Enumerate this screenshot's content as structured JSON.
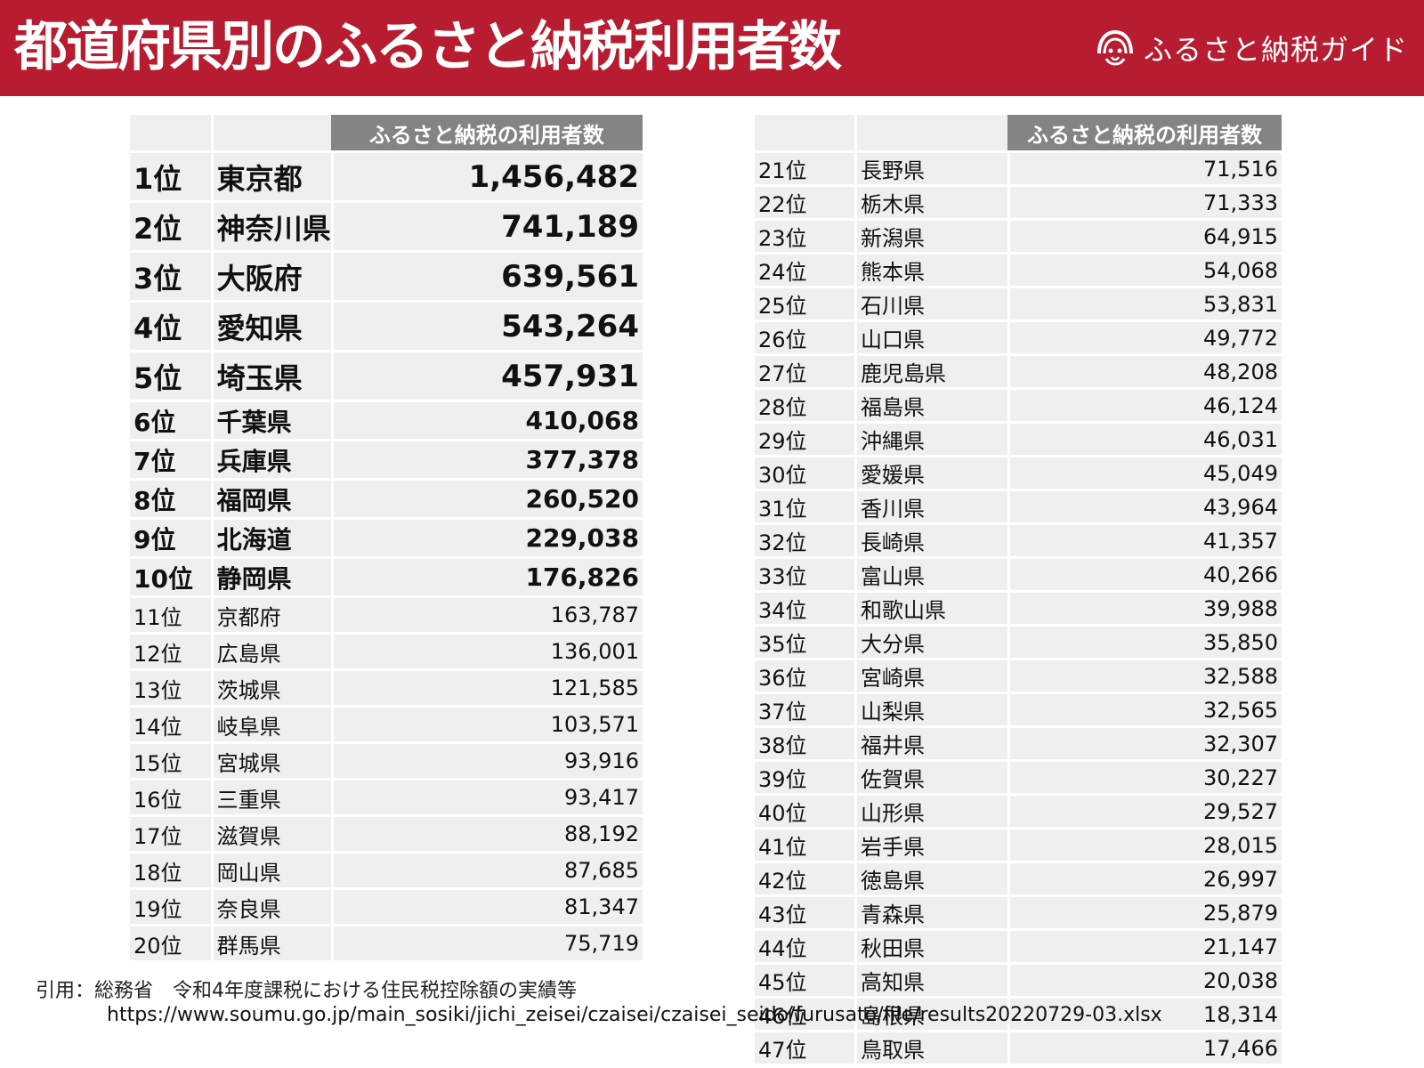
{
  "header": {
    "title": "都道府県別のふるさと納税利用者数",
    "brand": "ふるさと納税ガイド",
    "brand_icon": "furusato-logo-icon",
    "color": "#b71c30"
  },
  "table_left": {
    "column_header": "ふるさと納税の利用者数",
    "rows": [
      {
        "rank": "1位",
        "pref": "東京都",
        "value": "1,456,482"
      },
      {
        "rank": "2位",
        "pref": "神奈川県",
        "value": "741,189"
      },
      {
        "rank": "3位",
        "pref": "大阪府",
        "value": "639,561"
      },
      {
        "rank": "4位",
        "pref": "愛知県",
        "value": "543,264"
      },
      {
        "rank": "5位",
        "pref": "埼玉県",
        "value": "457,931"
      },
      {
        "rank": "6位",
        "pref": "千葉県",
        "value": "410,068"
      },
      {
        "rank": "7位",
        "pref": "兵庫県",
        "value": "377,378"
      },
      {
        "rank": "8位",
        "pref": "福岡県",
        "value": "260,520"
      },
      {
        "rank": "9位",
        "pref": "北海道",
        "value": "229,038"
      },
      {
        "rank": "10位",
        "pref": "静岡県",
        "value": "176,826"
      },
      {
        "rank": "11位",
        "pref": "京都府",
        "value": "163,787"
      },
      {
        "rank": "12位",
        "pref": "広島県",
        "value": "136,001"
      },
      {
        "rank": "13位",
        "pref": "茨城県",
        "value": "121,585"
      },
      {
        "rank": "14位",
        "pref": "岐阜県",
        "value": "103,571"
      },
      {
        "rank": "15位",
        "pref": "宮城県",
        "value": "93,916"
      },
      {
        "rank": "16位",
        "pref": "三重県",
        "value": "93,417"
      },
      {
        "rank": "17位",
        "pref": "滋賀県",
        "value": "88,192"
      },
      {
        "rank": "18位",
        "pref": "岡山県",
        "value": "87,685"
      },
      {
        "rank": "19位",
        "pref": "奈良県",
        "value": "81,347"
      },
      {
        "rank": "20位",
        "pref": "群馬県",
        "value": "75,719"
      }
    ]
  },
  "table_right": {
    "column_header": "ふるさと納税の利用者数",
    "rows": [
      {
        "rank": "21位",
        "pref": "長野県",
        "value": "71,516"
      },
      {
        "rank": "22位",
        "pref": "栃木県",
        "value": "71,333"
      },
      {
        "rank": "23位",
        "pref": "新潟県",
        "value": "64,915"
      },
      {
        "rank": "24位",
        "pref": "熊本県",
        "value": "54,068"
      },
      {
        "rank": "25位",
        "pref": "石川県",
        "value": "53,831"
      },
      {
        "rank": "26位",
        "pref": "山口県",
        "value": "49,772"
      },
      {
        "rank": "27位",
        "pref": "鹿児島県",
        "value": "48,208"
      },
      {
        "rank": "28位",
        "pref": "福島県",
        "value": "46,124"
      },
      {
        "rank": "29位",
        "pref": "沖縄県",
        "value": "46,031"
      },
      {
        "rank": "30位",
        "pref": "愛媛県",
        "value": "45,049"
      },
      {
        "rank": "31位",
        "pref": "香川県",
        "value": "43,964"
      },
      {
        "rank": "32位",
        "pref": "長崎県",
        "value": "41,357"
      },
      {
        "rank": "33位",
        "pref": "富山県",
        "value": "40,266"
      },
      {
        "rank": "34位",
        "pref": "和歌山県",
        "value": "39,988"
      },
      {
        "rank": "35位",
        "pref": "大分県",
        "value": "35,850"
      },
      {
        "rank": "36位",
        "pref": "宮崎県",
        "value": "32,588"
      },
      {
        "rank": "37位",
        "pref": "山梨県",
        "value": "32,565"
      },
      {
        "rank": "38位",
        "pref": "福井県",
        "value": "32,307"
      },
      {
        "rank": "39位",
        "pref": "佐賀県",
        "value": "30,227"
      },
      {
        "rank": "40位",
        "pref": "山形県",
        "value": "29,527"
      },
      {
        "rank": "41位",
        "pref": "岩手県",
        "value": "28,015"
      },
      {
        "rank": "42位",
        "pref": "徳島県",
        "value": "26,997"
      },
      {
        "rank": "43位",
        "pref": "青森県",
        "value": "25,879"
      },
      {
        "rank": "44位",
        "pref": "秋田県",
        "value": "21,147"
      },
      {
        "rank": "45位",
        "pref": "高知県",
        "value": "20,038"
      },
      {
        "rank": "46位",
        "pref": "島根県",
        "value": "18,314"
      },
      {
        "rank": "47位",
        "pref": "鳥取県",
        "value": "17,466"
      }
    ]
  },
  "citation": {
    "text": "引用：総務省　令和4年度課税における住民税控除額の実績等",
    "url": "https://www.soumu.go.jp/main_sosiki/jichi_zeisei/czaisei/czaisei_seido/furusato/file/results20220729-03.xlsx"
  }
}
